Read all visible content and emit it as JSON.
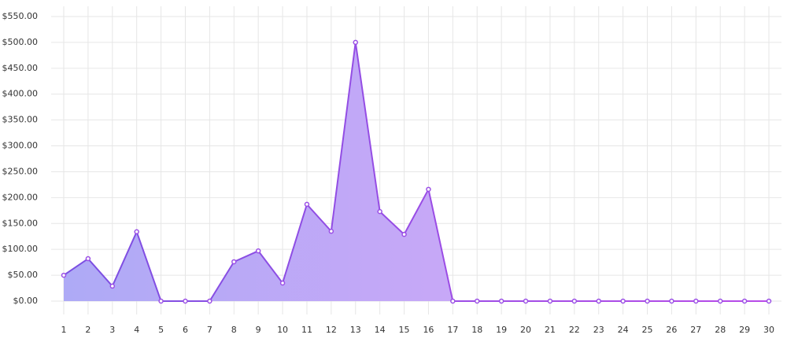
{
  "chart_data": {
    "type": "area",
    "categories": [
      "1",
      "2",
      "3",
      "4",
      "5",
      "6",
      "7",
      "8",
      "9",
      "10",
      "11",
      "12",
      "13",
      "14",
      "15",
      "16",
      "17",
      "18",
      "19",
      "20",
      "21",
      "22",
      "23",
      "24",
      "25",
      "26",
      "27",
      "28",
      "29",
      "30"
    ],
    "values": [
      50,
      82,
      29,
      134,
      0,
      0,
      0,
      76,
      97,
      35,
      187,
      135,
      500,
      173,
      129,
      216,
      0,
      0,
      0,
      0,
      0,
      0,
      0,
      0,
      0,
      0,
      0,
      0,
      0,
      0
    ],
    "color": "#9b4fe6",
    "ylim": [
      0,
      550
    ],
    "yticks": [
      {
        "value": 0,
        "label": "$0.00"
      },
      {
        "value": 50,
        "label": "$50.00"
      },
      {
        "value": 100,
        "label": "$100.00"
      },
      {
        "value": 150,
        "label": "$150.00"
      },
      {
        "value": 200,
        "label": "$200.00"
      },
      {
        "value": 250,
        "label": "$250.00"
      },
      {
        "value": 300,
        "label": "$300.00"
      },
      {
        "value": 350,
        "label": "$350.00"
      },
      {
        "value": 400,
        "label": "$400.00"
      },
      {
        "value": 450,
        "label": "$450.00"
      },
      {
        "value": 500,
        "label": "$500.00"
      },
      {
        "value": 550,
        "label": "$550.00"
      }
    ],
    "grid": true
  }
}
